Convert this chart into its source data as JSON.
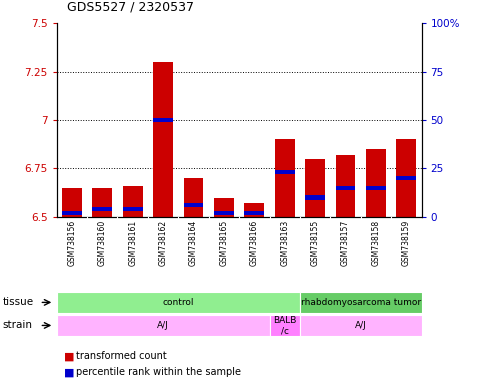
{
  "title": "GDS5527 / 2320537",
  "samples": [
    "GSM738156",
    "GSM738160",
    "GSM738161",
    "GSM738162",
    "GSM738164",
    "GSM738165",
    "GSM738166",
    "GSM738163",
    "GSM738155",
    "GSM738157",
    "GSM738158",
    "GSM738159"
  ],
  "red_values": [
    6.65,
    6.65,
    6.66,
    7.3,
    6.7,
    6.6,
    6.57,
    6.9,
    6.8,
    6.82,
    6.85,
    6.9
  ],
  "blue_values": [
    6.52,
    6.54,
    6.54,
    7.0,
    6.56,
    6.52,
    6.52,
    6.73,
    6.6,
    6.65,
    6.65,
    6.7
  ],
  "ymin": 6.5,
  "ymax": 7.5,
  "yticks": [
    6.5,
    6.75,
    7.0,
    7.25,
    7.5
  ],
  "yticklabels_left": [
    "6.5",
    "6.75",
    "7",
    "7.25",
    "7.5"
  ],
  "yticklabels_right": [
    "0",
    "25",
    "50",
    "75",
    "100%"
  ],
  "grid_dotted_at": [
    6.75,
    7.0,
    7.25
  ],
  "tissue_labels": [
    {
      "text": "control",
      "start": 0,
      "end": 7,
      "color": "#90EE90"
    },
    {
      "text": "rhabdomyosarcoma tumor",
      "start": 8,
      "end": 11,
      "color": "#66CC66"
    }
  ],
  "strain_labels": [
    {
      "text": "A/J",
      "start": 0,
      "end": 6,
      "color": "#FFB3FF"
    },
    {
      "text": "BALB\n/c",
      "start": 7,
      "end": 7,
      "color": "#FF80FF"
    },
    {
      "text": "A/J",
      "start": 8,
      "end": 11,
      "color": "#FFB3FF"
    }
  ],
  "bar_color": "#CC0000",
  "blue_color": "#0000CC",
  "left_tick_color": "#CC0000",
  "right_tick_color": "#0000CC",
  "bar_width": 0.65,
  "blue_bar_height": 0.022,
  "label_bg_color": "#C8C8C8",
  "label_divider_color": "#FFFFFF"
}
